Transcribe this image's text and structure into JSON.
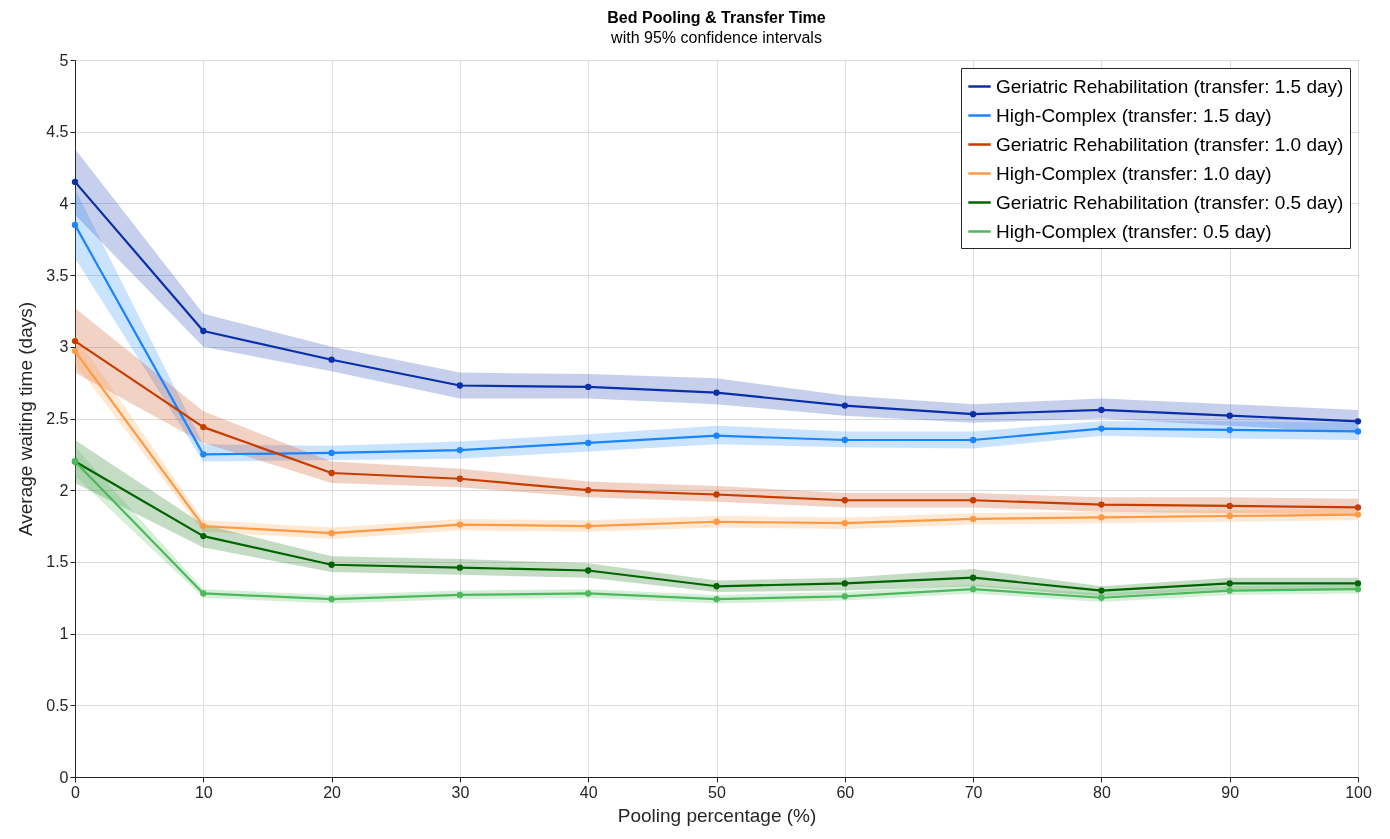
{
  "chart_data": {
    "type": "line",
    "title": "Bed Pooling & Transfer Time",
    "subtitle": "with 95% confidence intervals",
    "xlabel": "Pooling percentage (%)",
    "ylabel": "Average waiting time (days)",
    "x": [
      0,
      10,
      20,
      30,
      40,
      50,
      60,
      70,
      80,
      90,
      100
    ],
    "xlim": [
      0,
      100
    ],
    "xticks": [
      0,
      10,
      20,
      30,
      40,
      50,
      60,
      70,
      80,
      90,
      100
    ],
    "ylim": [
      0,
      5
    ],
    "yticks": [
      0,
      0.5,
      1,
      1.5,
      2,
      2.5,
      3,
      3.5,
      4,
      4.5,
      5
    ],
    "grid": true,
    "legend": "top right",
    "marker": "circle",
    "line_style": "solid",
    "series": [
      {
        "name": "Geriatric Rehabilitation (transfer: 1.5 day)",
        "color": "#0a2fa8",
        "values": [
          4.15,
          3.11,
          2.91,
          2.73,
          2.72,
          2.68,
          2.59,
          2.53,
          2.56,
          2.52,
          2.48
        ],
        "lower": [
          3.92,
          3.0,
          2.83,
          2.64,
          2.64,
          2.6,
          2.52,
          2.47,
          2.5,
          2.45,
          2.4
        ],
        "upper": [
          4.38,
          3.23,
          3.0,
          2.82,
          2.81,
          2.78,
          2.66,
          2.6,
          2.64,
          2.6,
          2.56
        ]
      },
      {
        "name": "High-Complex (transfer: 1.5 day)",
        "color": "#1a85ff",
        "values": [
          3.85,
          2.25,
          2.26,
          2.28,
          2.33,
          2.38,
          2.35,
          2.35,
          2.43,
          2.42,
          2.41
        ],
        "lower": [
          3.62,
          2.2,
          2.21,
          2.22,
          2.27,
          2.32,
          2.3,
          2.29,
          2.38,
          2.36,
          2.35
        ],
        "upper": [
          4.1,
          2.32,
          2.31,
          2.34,
          2.39,
          2.45,
          2.41,
          2.41,
          2.48,
          2.48,
          2.47
        ]
      },
      {
        "name": "Geriatric Rehabilitation (transfer: 1.0 day)",
        "color": "#c63d00",
        "values": [
          3.04,
          2.44,
          2.12,
          2.08,
          2.0,
          1.97,
          1.93,
          1.93,
          1.9,
          1.89,
          1.88
        ],
        "lower": [
          2.82,
          2.33,
          2.05,
          2.02,
          1.95,
          1.92,
          1.88,
          1.88,
          1.85,
          1.84,
          1.83
        ],
        "upper": [
          3.27,
          2.55,
          2.2,
          2.15,
          2.06,
          2.03,
          1.98,
          1.98,
          1.95,
          1.95,
          1.94
        ]
      },
      {
        "name": "High-Complex (transfer: 1.0 day)",
        "color": "#ff9a44",
        "values": [
          2.97,
          1.75,
          1.7,
          1.76,
          1.75,
          1.78,
          1.77,
          1.8,
          1.81,
          1.82,
          1.83
        ],
        "lower": [
          2.88,
          1.71,
          1.66,
          1.72,
          1.71,
          1.74,
          1.73,
          1.76,
          1.77,
          1.78,
          1.79
        ],
        "upper": [
          3.08,
          1.79,
          1.74,
          1.8,
          1.79,
          1.82,
          1.81,
          1.84,
          1.85,
          1.86,
          1.87
        ]
      },
      {
        "name": "Geriatric Rehabilitation (transfer: 0.5 day)",
        "color": "#006400",
        "values": [
          2.2,
          1.68,
          1.48,
          1.46,
          1.44,
          1.33,
          1.35,
          1.39,
          1.3,
          1.35,
          1.35
        ],
        "lower": [
          2.05,
          1.6,
          1.43,
          1.41,
          1.39,
          1.29,
          1.3,
          1.33,
          1.26,
          1.31,
          1.31
        ],
        "upper": [
          2.35,
          1.76,
          1.54,
          1.52,
          1.49,
          1.37,
          1.39,
          1.45,
          1.33,
          1.39,
          1.39
        ]
      },
      {
        "name": "High-Complex (transfer: 0.5 day)",
        "color": "#4db85c",
        "values": [
          2.2,
          1.28,
          1.24,
          1.27,
          1.28,
          1.24,
          1.26,
          1.31,
          1.25,
          1.3,
          1.31
        ],
        "lower": [
          2.1,
          1.25,
          1.21,
          1.24,
          1.25,
          1.21,
          1.23,
          1.28,
          1.22,
          1.27,
          1.28
        ],
        "upper": [
          2.3,
          1.31,
          1.27,
          1.3,
          1.31,
          1.27,
          1.29,
          1.34,
          1.28,
          1.33,
          1.34
        ]
      }
    ]
  }
}
